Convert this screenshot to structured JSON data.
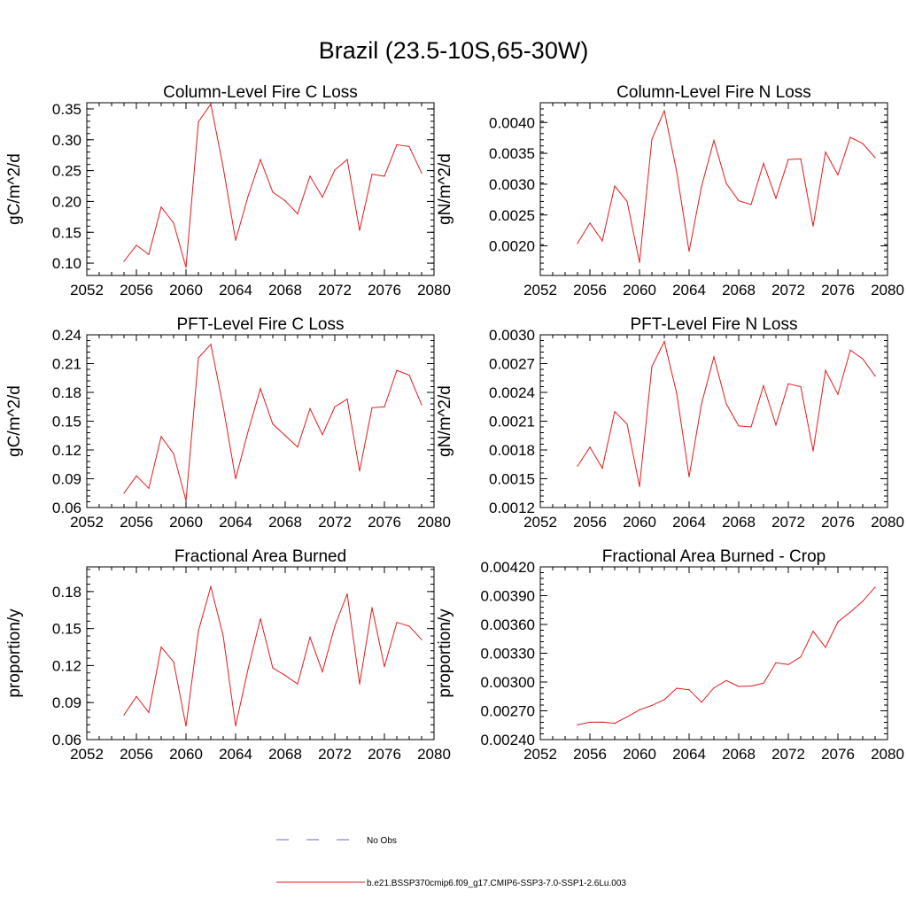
{
  "figure": {
    "title": "Brazil (23.5-10S,65-30W)",
    "series_color": "#e31a1c",
    "obs_color": "#6a6acd"
  },
  "legend": {
    "obs_label": "No Obs",
    "model_label": "b.e21.BSSP370cmip6.f09_g17.CMIP6-SSP3-7.0-SSP1-2.6Lu.003"
  },
  "chart_data": [
    {
      "type": "line",
      "title": "Column-Level Fire C Loss",
      "ylabel": "gC/m^2/d",
      "xlim": [
        2052,
        2080
      ],
      "ylim": [
        0.08,
        0.36
      ],
      "xticks": [
        "2052",
        "2056",
        "2060",
        "2064",
        "2068",
        "2072",
        "2076",
        "2080"
      ],
      "yticks": [
        "0.10",
        "0.15",
        "0.20",
        "0.25",
        "0.30",
        "0.35"
      ],
      "x": [
        2055,
        2056,
        2057,
        2058,
        2059,
        2060,
        2061,
        2062,
        2063,
        2064,
        2065,
        2066,
        2067,
        2068,
        2069,
        2070,
        2071,
        2072,
        2073,
        2074,
        2075,
        2076,
        2077,
        2078,
        2079
      ],
      "values": [
        0.103,
        0.129,
        0.114,
        0.191,
        0.165,
        0.093,
        0.329,
        0.358,
        0.255,
        0.137,
        0.208,
        0.268,
        0.215,
        0.201,
        0.18,
        0.241,
        0.207,
        0.251,
        0.268,
        0.153,
        0.244,
        0.241,
        0.292,
        0.289,
        0.246
      ]
    },
    {
      "type": "line",
      "title": "Column-Level Fire N Loss",
      "ylabel": "gN/m^2/d",
      "xlim": [
        2052,
        2080
      ],
      "ylim": [
        0.00152,
        0.00432
      ],
      "xticks": [
        "2052",
        "2056",
        "2060",
        "2064",
        "2068",
        "2072",
        "2076",
        "2080"
      ],
      "yticks": [
        "0.0020",
        "0.0025",
        "0.0030",
        "0.0035",
        "0.0040"
      ],
      "x": [
        2055,
        2056,
        2057,
        2058,
        2059,
        2060,
        2061,
        2062,
        2063,
        2064,
        2065,
        2066,
        2067,
        2068,
        2069,
        2070,
        2071,
        2072,
        2073,
        2074,
        2075,
        2076,
        2077,
        2078,
        2079
      ],
      "values": [
        0.00204,
        0.00237,
        0.00208,
        0.00297,
        0.00272,
        0.00173,
        0.00373,
        0.00419,
        0.0032,
        0.00191,
        0.00296,
        0.00371,
        0.00301,
        0.00273,
        0.00267,
        0.00334,
        0.00277,
        0.0034,
        0.00341,
        0.00232,
        0.00352,
        0.00315,
        0.00376,
        0.00366,
        0.00343
      ]
    },
    {
      "type": "line",
      "title": "PFT-Level Fire C Loss",
      "ylabel": "gC/m^2/d",
      "xlim": [
        2052,
        2080
      ],
      "ylim": [
        0.06,
        0.24
      ],
      "xticks": [
        "2052",
        "2056",
        "2060",
        "2064",
        "2068",
        "2072",
        "2076",
        "2080"
      ],
      "yticks": [
        "0.06",
        "0.09",
        "0.12",
        "0.15",
        "0.18",
        "0.21",
        "0.24"
      ],
      "x": [
        2055,
        2056,
        2057,
        2058,
        2059,
        2060,
        2061,
        2062,
        2063,
        2064,
        2065,
        2066,
        2067,
        2068,
        2069,
        2070,
        2071,
        2072,
        2073,
        2074,
        2075,
        2076,
        2077,
        2078,
        2079
      ],
      "values": [
        0.075,
        0.093,
        0.08,
        0.134,
        0.116,
        0.067,
        0.216,
        0.23,
        0.165,
        0.09,
        0.139,
        0.184,
        0.147,
        0.135,
        0.123,
        0.163,
        0.136,
        0.165,
        0.173,
        0.098,
        0.164,
        0.165,
        0.203,
        0.198,
        0.167
      ]
    },
    {
      "type": "line",
      "title": "PFT-Level Fire N Loss",
      "ylabel": "gN/m^2/d",
      "xlim": [
        2052,
        2080
      ],
      "ylim": [
        0.0012,
        0.003
      ],
      "xticks": [
        "2052",
        "2056",
        "2060",
        "2064",
        "2068",
        "2072",
        "2076",
        "2080"
      ],
      "yticks": [
        "0.0012",
        "0.0015",
        "0.0018",
        "0.0021",
        "0.0024",
        "0.0027",
        "0.0030"
      ],
      "x": [
        2055,
        2056,
        2057,
        2058,
        2059,
        2060,
        2061,
        2062,
        2063,
        2064,
        2065,
        2066,
        2067,
        2068,
        2069,
        2070,
        2071,
        2072,
        2073,
        2074,
        2075,
        2076,
        2077,
        2078,
        2079
      ],
      "values": [
        0.00163,
        0.00183,
        0.00161,
        0.0022,
        0.00207,
        0.00142,
        0.00267,
        0.00293,
        0.00239,
        0.00152,
        0.00228,
        0.00277,
        0.00228,
        0.00205,
        0.00204,
        0.00247,
        0.00206,
        0.00249,
        0.00246,
        0.00179,
        0.00263,
        0.00238,
        0.00284,
        0.00275,
        0.00257
      ]
    },
    {
      "type": "line",
      "title": "Fractional Area Burned",
      "ylabel": "proportion/y",
      "xlim": [
        2052,
        2080
      ],
      "ylim": [
        0.06,
        0.2
      ],
      "xticks": [
        "2052",
        "2056",
        "2060",
        "2064",
        "2068",
        "2072",
        "2076",
        "2080"
      ],
      "yticks": [
        "0.06",
        "0.09",
        "0.12",
        "0.15",
        "0.18"
      ],
      "x": [
        2055,
        2056,
        2057,
        2058,
        2059,
        2060,
        2061,
        2062,
        2063,
        2064,
        2065,
        2066,
        2067,
        2068,
        2069,
        2070,
        2071,
        2072,
        2073,
        2074,
        2075,
        2076,
        2077,
        2078,
        2079
      ],
      "values": [
        0.08,
        0.095,
        0.082,
        0.135,
        0.123,
        0.071,
        0.148,
        0.184,
        0.144,
        0.071,
        0.117,
        0.158,
        0.118,
        0.112,
        0.105,
        0.143,
        0.115,
        0.152,
        0.178,
        0.105,
        0.167,
        0.119,
        0.155,
        0.152,
        0.141
      ]
    },
    {
      "type": "line",
      "title": "Fractional Area Burned - Crop",
      "ylabel": "proportion/y",
      "xlim": [
        2052,
        2080
      ],
      "ylim": [
        0.0024,
        0.0042
      ],
      "xticks": [
        "2052",
        "2056",
        "2060",
        "2064",
        "2068",
        "2072",
        "2076",
        "2080"
      ],
      "yticks": [
        "0.00240",
        "0.00270",
        "0.00300",
        "0.00330",
        "0.00360",
        "0.00390",
        "0.00420"
      ],
      "x": [
        2055,
        2056,
        2057,
        2058,
        2059,
        2060,
        2061,
        2062,
        2063,
        2064,
        2065,
        2066,
        2067,
        2068,
        2069,
        2070,
        2071,
        2072,
        2073,
        2074,
        2075,
        2076,
        2077,
        2078,
        2079
      ],
      "values": [
        0.002555,
        0.002581,
        0.002583,
        0.00257,
        0.002637,
        0.00271,
        0.002756,
        0.002816,
        0.002935,
        0.00292,
        0.00279,
        0.002939,
        0.003016,
        0.002954,
        0.002958,
        0.002987,
        0.0032,
        0.003182,
        0.003261,
        0.003529,
        0.003361,
        0.003627,
        0.003729,
        0.003842,
        0.00399
      ]
    }
  ]
}
